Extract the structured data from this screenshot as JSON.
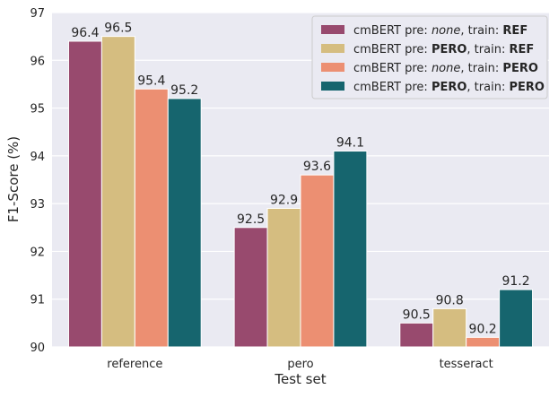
{
  "chart_data": {
    "type": "bar",
    "title": "",
    "xlabel": "Test set",
    "ylabel": "F1-Score (%)",
    "ylim": [
      90,
      97
    ],
    "yticks": [
      90,
      91,
      92,
      93,
      94,
      95,
      96,
      97
    ],
    "grid": true,
    "legend_position": "top-right",
    "categories": [
      "reference",
      "pero",
      "tesseract"
    ],
    "series": [
      {
        "name": "cmBERT pre: none, train: REF",
        "legend_parts": [
          {
            "text": "cmBERT pre: ",
            "style": "normal"
          },
          {
            "text": "none",
            "style": "italic"
          },
          {
            "text": ", train: ",
            "style": "normal"
          },
          {
            "text": "REF",
            "style": "bold"
          }
        ],
        "color": "#984a6e",
        "values": [
          96.4,
          92.5,
          90.5
        ]
      },
      {
        "name": "cmBERT pre: PERO, train: REF",
        "legend_parts": [
          {
            "text": "cmBERT pre: ",
            "style": "normal"
          },
          {
            "text": "PERO",
            "style": "bold"
          },
          {
            "text": ", train: ",
            "style": "normal"
          },
          {
            "text": "REF",
            "style": "bold"
          }
        ],
        "color": "#d5bd80",
        "values": [
          96.5,
          92.9,
          90.8
        ]
      },
      {
        "name": "cmBERT pre: none, train: PERO",
        "legend_parts": [
          {
            "text": "cmBERT pre: ",
            "style": "normal"
          },
          {
            "text": "none",
            "style": "italic"
          },
          {
            "text": ", train: ",
            "style": "normal"
          },
          {
            "text": "PERO",
            "style": "bold"
          }
        ],
        "color": "#ec8f72",
        "values": [
          95.4,
          93.6,
          90.2
        ]
      },
      {
        "name": "cmBERT pre: PERO, train: PERO",
        "legend_parts": [
          {
            "text": "cmBERT pre: ",
            "style": "normal"
          },
          {
            "text": "PERO",
            "style": "bold"
          },
          {
            "text": ", train: ",
            "style": "normal"
          },
          {
            "text": "PERO",
            "style": "bold"
          }
        ],
        "color": "#16656e",
        "values": [
          95.2,
          94.1,
          91.2
        ]
      }
    ],
    "plot_background": "#eaeaf2",
    "grid_color": "#ffffff"
  }
}
